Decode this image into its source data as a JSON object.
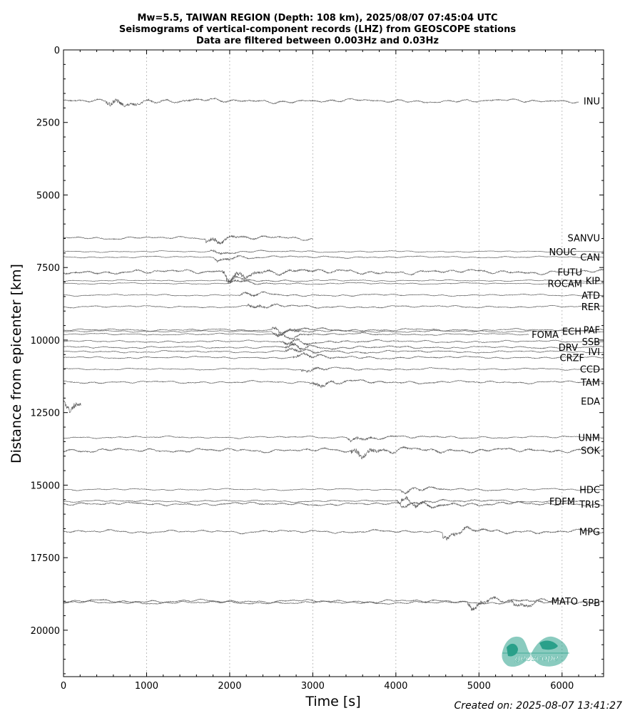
{
  "chart_data": {
    "type": "seismogram-record-section",
    "title_lines": [
      "Mw=5.5, TAIWAN REGION (Depth: 108 km), 2025/08/07 07:45:04 UTC",
      "Seismograms of vertical-component records (LHZ) from GEOSCOPE stations",
      "Data are filtered between 0.003Hz and 0.03Hz"
    ],
    "xlabel": "Time [s]",
    "ylabel": "Distance from epicenter [km]",
    "xlim": [
      0,
      6500
    ],
    "ylim": [
      21600,
      0
    ],
    "x_ticks": [
      0,
      1000,
      2000,
      3000,
      4000,
      5000,
      6000
    ],
    "x_tick_labels": [
      "0",
      "1000",
      "2000",
      "3000",
      "4000",
      "5000",
      "6000"
    ],
    "y_ticks": [
      0,
      2500,
      5000,
      7500,
      10000,
      12500,
      15000,
      17500,
      20000
    ],
    "y_tick_labels": [
      "0",
      "2500",
      "5000",
      "7500",
      "10000",
      "12500",
      "15000",
      "17500",
      "20000"
    ],
    "grid": "vertical dotted lines at x ticks",
    "line_color": "#555555",
    "stations": [
      {
        "name": "INU",
        "distance": 1760,
        "t_end": 6200,
        "arrival": 540,
        "amp": 1.0
      },
      {
        "name": "SANVU",
        "distance": 6480,
        "t_end": 3000,
        "arrival": 1750,
        "amp": 0.8
      },
      {
        "name": "NOUC",
        "distance": 6950,
        "t_end": 6500,
        "arrival": 1800,
        "amp": 0.4
      },
      {
        "name": "CAN",
        "distance": 7140,
        "t_end": 6500,
        "arrival": 1850,
        "amp": 0.5
      },
      {
        "name": "FUTU",
        "distance": 7650,
        "t_end": 6500,
        "arrival": 1950,
        "amp": 1.2
      },
      {
        "name": "KIP",
        "distance": 7950,
        "t_end": 6500,
        "arrival": 2000,
        "amp": 0.4
      },
      {
        "name": "ROCAM",
        "distance": 8050,
        "t_end": 6500,
        "arrival": 2050,
        "amp": 0.4
      },
      {
        "name": "ATD",
        "distance": 8450,
        "t_end": 6500,
        "arrival": 2150,
        "amp": 0.5
      },
      {
        "name": "RER",
        "distance": 8850,
        "t_end": 6500,
        "arrival": 2250,
        "amp": 0.6
      },
      {
        "name": "PAF",
        "distance": 9650,
        "t_end": 6500,
        "arrival": 2550,
        "amp": 0.6
      },
      {
        "name": "ECH",
        "distance": 9700,
        "t_end": 6500,
        "arrival": 2550,
        "amp": 0.5
      },
      {
        "name": "FOMA",
        "distance": 9800,
        "t_end": 5600,
        "arrival": 2600,
        "amp": 0.5
      },
      {
        "name": "SSB",
        "distance": 10050,
        "t_end": 6500,
        "arrival": 2650,
        "amp": 0.6
      },
      {
        "name": "DRV",
        "distance": 10250,
        "t_end": 6500,
        "arrival": 2700,
        "amp": 0.6
      },
      {
        "name": "IVI",
        "distance": 10400,
        "t_end": 6500,
        "arrival": 2700,
        "amp": 0.6
      },
      {
        "name": "CRZF",
        "distance": 10600,
        "t_end": 6500,
        "arrival": 2800,
        "amp": 0.6
      },
      {
        "name": "CCD",
        "distance": 11000,
        "t_end": 6500,
        "arrival": 2900,
        "amp": 0.5
      },
      {
        "name": "TAM",
        "distance": 11450,
        "t_end": 6500,
        "arrival": 3000,
        "amp": 0.7
      },
      {
        "name": "EDA",
        "distance": 12100,
        "t_end": 210,
        "arrival": 60,
        "amp": 1.3
      },
      {
        "name": "UNM",
        "distance": 13350,
        "t_end": 6500,
        "arrival": 3450,
        "amp": 0.6
      },
      {
        "name": "SOK",
        "distance": 13800,
        "t_end": 6500,
        "arrival": 3500,
        "amp": 1.1
      },
      {
        "name": "HDC",
        "distance": 15150,
        "t_end": 6500,
        "arrival": 4100,
        "amp": 0.5
      },
      {
        "name": "FDFM",
        "distance": 15550,
        "t_end": 6200,
        "arrival": 4050,
        "amp": 0.6
      },
      {
        "name": "TRIS",
        "distance": 15650,
        "t_end": 6500,
        "arrival": 4100,
        "amp": 0.9
      },
      {
        "name": "MPG",
        "distance": 16600,
        "t_end": 6500,
        "arrival": 4600,
        "amp": 0.9
      },
      {
        "name": "MATO",
        "distance": 19000,
        "t_end": 5900,
        "arrival": 4900,
        "amp": 0.9
      },
      {
        "name": "SPB",
        "distance": 19050,
        "t_end": 6500,
        "arrival": 5400,
        "amp": 0.8
      }
    ]
  },
  "logo": {
    "text": "geoscope",
    "color": "#2aa08a"
  },
  "created": "Created on: 2025-08-07 13:41:27"
}
